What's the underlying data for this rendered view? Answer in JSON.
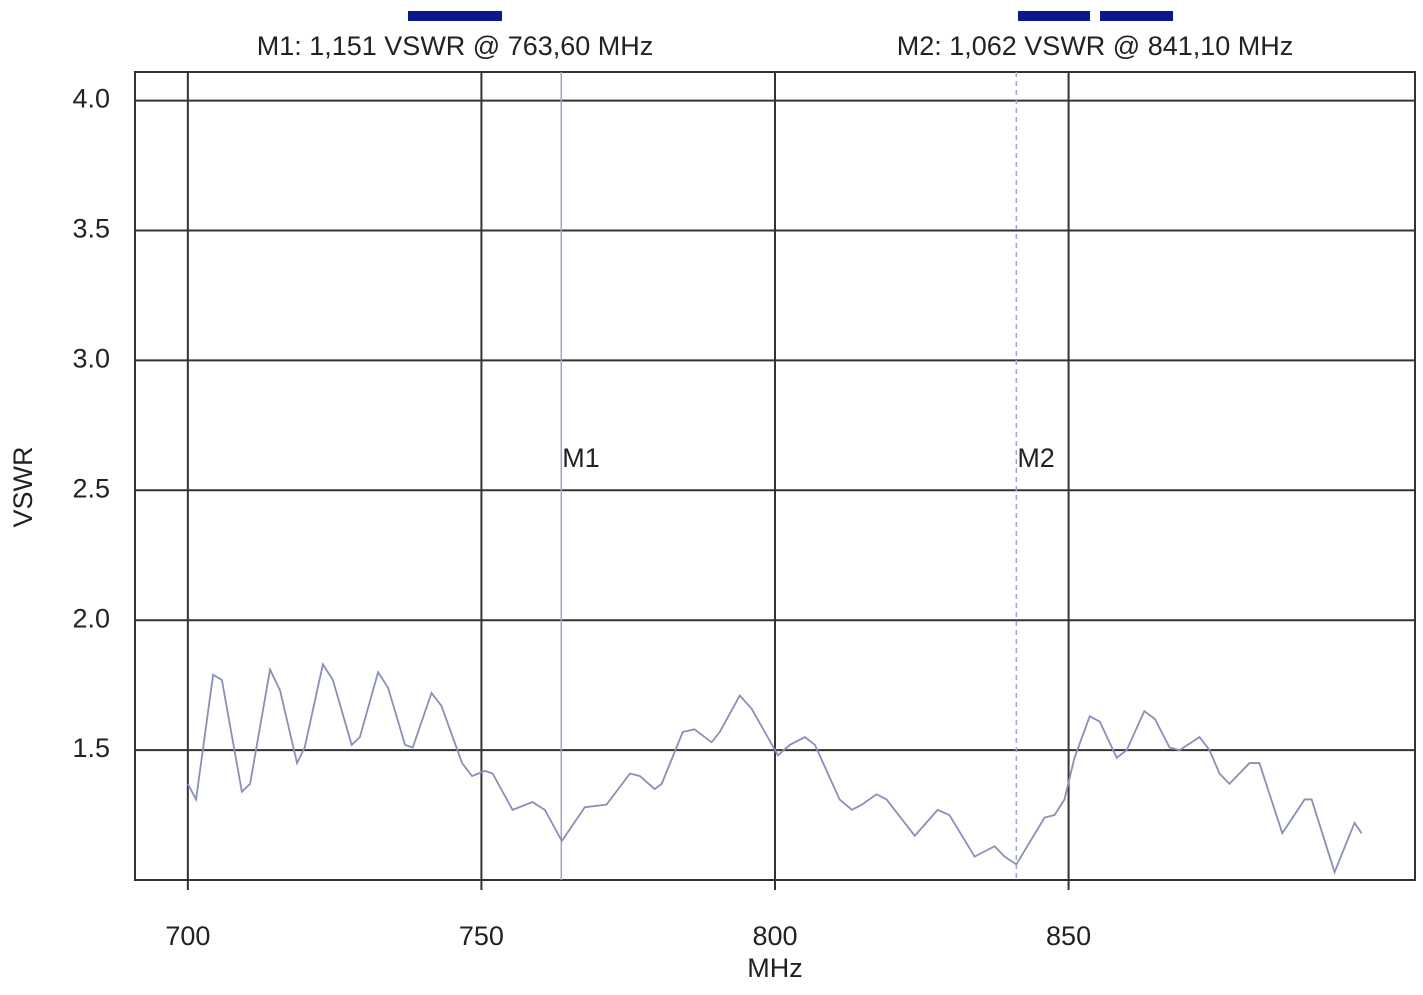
{
  "chart_data": {
    "type": "line",
    "xlabel": "MHz",
    "ylabel": "VSWR",
    "xlim": [
      691,
      909
    ],
    "xticks": [
      700,
      750,
      800,
      850
    ],
    "ylim": [
      1.0,
      4.11
    ],
    "yticks": [
      1.5,
      {
        "value": 2,
        "label": "2.0"
      },
      2.5,
      {
        "value": 3,
        "label": "3.0"
      },
      3.5,
      {
        "value": 4,
        "label": "4.0"
      }
    ],
    "grid": true,
    "series": [
      {
        "name": "VSWR",
        "color": "#8a8fb8",
        "x": [
          700,
          701.4,
          704.3,
          705.8,
          709.2,
          710.6,
          714,
          715.7,
          718.6,
          719.9,
          723,
          724.7,
          727.9,
          729.3,
          732.4,
          734.1,
          737,
          738.3,
          741.5,
          743.2,
          746.7,
          748.4,
          750.6,
          751.9,
          755.3,
          758.7,
          760.8,
          763.7,
          767.6,
          771.3,
          775.3,
          777,
          779.5,
          780.7,
          784.3,
          786.3,
          789.2,
          790.6,
          794,
          796,
          800.5,
          802.5,
          805.1,
          806.8,
          811,
          813.1,
          814.8,
          817.3,
          819,
          823.8,
          827.7,
          829.7,
          834,
          837.4,
          839.1,
          841.1,
          845.9,
          847.6,
          849.3,
          851,
          853.6,
          855.3,
          858.2,
          859.9,
          862.9,
          864.7,
          867.2,
          868.9,
          872.3,
          874,
          875.7,
          877.4,
          880.8,
          882.5,
          886.4,
          890.2,
          891.4,
          895.3,
          898.7,
          899.9
        ],
        "values": [
          1.37,
          1.31,
          1.79,
          1.77,
          1.34,
          1.37,
          1.81,
          1.73,
          1.45,
          1.51,
          1.83,
          1.77,
          1.52,
          1.55,
          1.8,
          1.74,
          1.52,
          1.51,
          1.72,
          1.67,
          1.45,
          1.4,
          1.42,
          1.41,
          1.27,
          1.3,
          1.27,
          1.15,
          1.28,
          1.29,
          1.41,
          1.4,
          1.35,
          1.37,
          1.57,
          1.58,
          1.53,
          1.57,
          1.71,
          1.66,
          1.48,
          1.52,
          1.55,
          1.52,
          1.31,
          1.27,
          1.29,
          1.33,
          1.31,
          1.17,
          1.27,
          1.25,
          1.09,
          1.13,
          1.09,
          1.06,
          1.24,
          1.25,
          1.31,
          1.47,
          1.63,
          1.61,
          1.47,
          1.5,
          1.65,
          1.62,
          1.51,
          1.5,
          1.55,
          1.5,
          1.41,
          1.37,
          1.45,
          1.45,
          1.18,
          1.31,
          1.31,
          1.03,
          1.22,
          1.18
        ]
      }
    ],
    "markers": [
      {
        "name": "M1",
        "x": 763.6,
        "label": "M1: 1,151 VSWR @ 763,60 MHz",
        "style": "solid"
      },
      {
        "name": "M2",
        "x": 841.1,
        "label": "M2: 1,062 VSWR @ 841,10 MHz",
        "style": "dashed"
      }
    ]
  }
}
